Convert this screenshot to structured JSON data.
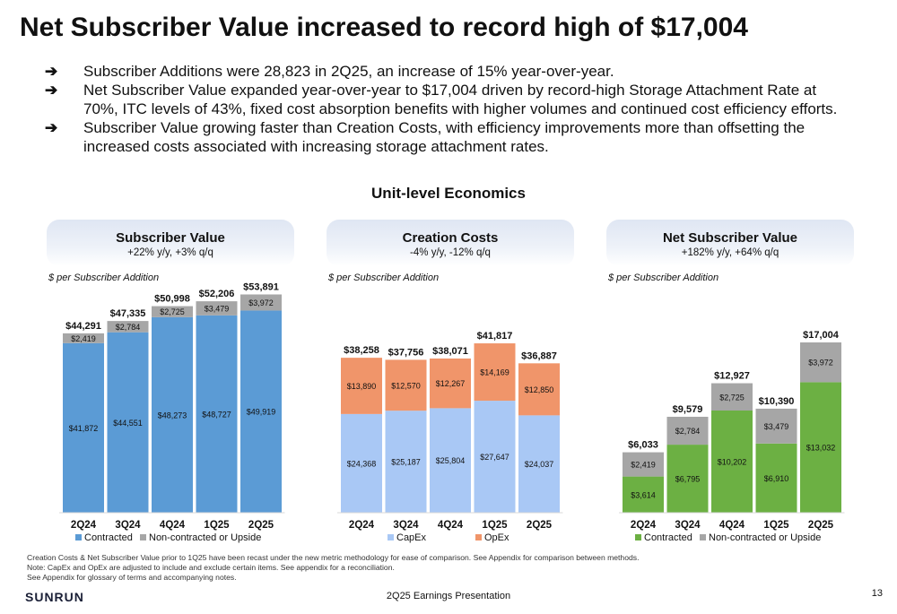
{
  "title": "Net Subscriber Value increased to record high of $17,004",
  "bullet_arrow": "➔",
  "bullets": [
    "Subscriber Additions were 28,823 in 2Q25, an increase of 15% year-over-year.",
    "Net Subscriber Value expanded year-over-year to $17,004 driven by record-high Storage Attachment Rate at 70%, ITC levels of 43%, fixed cost absorption benefits with higher volumes and continued cost efficiency efforts.",
    "Subscriber Value growing faster than Creation Costs, with efficiency improvements more than offsetting the increased costs associated with increasing storage attachment rates."
  ],
  "section_title": "Unit-level Economics",
  "colors": {
    "contracted_blue": "#5b9bd5",
    "noncontracted_gray": "#a6a6a6",
    "capex": "#a9c8f5",
    "opex": "#f0956a",
    "contracted_green": "#6cb043"
  },
  "panels": [
    {
      "title": "Subscriber Value",
      "subtitle": "+22% y/y, +3% q/q",
      "unit": "$ per Subscriber Addition"
    },
    {
      "title": "Creation Costs",
      "subtitle": "-4% y/y, -12% q/q",
      "unit": "$ per Subscriber Addition"
    },
    {
      "title": "Net Subscriber Value",
      "subtitle": "+182% y/y, +64% q/q",
      "unit": "$ per Subscriber Addition"
    }
  ],
  "chart_data": [
    {
      "type": "bar",
      "stacked": true,
      "categories": [
        "2Q24",
        "3Q24",
        "4Q24",
        "1Q25",
        "2Q25"
      ],
      "series": [
        {
          "name": "Contracted",
          "values": [
            41872,
            44551,
            48273,
            48727,
            49919
          ],
          "labels": [
            "$41,872",
            "$44,551",
            "$48,273",
            "$48,727",
            "$49,919"
          ],
          "color": "#5b9bd5"
        },
        {
          "name": "Non-contracted or Upside",
          "values": [
            2419,
            2784,
            2725,
            3479,
            3972
          ],
          "labels": [
            "$2,419",
            "$2,784",
            "$2,725",
            "$3,479",
            "$3,972"
          ],
          "color": "#a6a6a6"
        }
      ],
      "totals": [
        44291,
        47335,
        50998,
        52206,
        53891
      ],
      "total_labels": [
        "$44,291",
        "$47,335",
        "$50,998",
        "$52,206",
        "$53,891"
      ],
      "legend": [
        "Contracted",
        "Non-contracted or Upside"
      ],
      "legend_placement": "bottom",
      "ylim": [
        0,
        54000
      ]
    },
    {
      "type": "bar",
      "stacked": true,
      "categories": [
        "2Q24",
        "3Q24",
        "4Q24",
        "1Q25",
        "2Q25"
      ],
      "series": [
        {
          "name": "CapEx",
          "values": [
            24368,
            25187,
            25804,
            27647,
            24037
          ],
          "labels": [
            "$24,368",
            "$25,187",
            "$25,804",
            "$27,647",
            "$24,037"
          ],
          "color": "#a9c8f5"
        },
        {
          "name": "OpEx",
          "values": [
            13890,
            12570,
            12267,
            14169,
            12850
          ],
          "labels": [
            "$13,890",
            "$12,570",
            "$12,267",
            "$14,169",
            "$12,850"
          ],
          "color": "#f0956a"
        }
      ],
      "totals": [
        38258,
        37756,
        38071,
        41817,
        36887
      ],
      "total_labels": [
        "$38,258",
        "$37,756",
        "$38,071",
        "$41,817",
        "$36,887"
      ],
      "legend": [
        "CapEx",
        "OpEx"
      ],
      "legend_placement": "bottom",
      "ylim": [
        0,
        54000
      ]
    },
    {
      "type": "bar",
      "stacked": true,
      "categories": [
        "2Q24",
        "3Q24",
        "4Q24",
        "1Q25",
        "2Q25"
      ],
      "series": [
        {
          "name": "Contracted",
          "values": [
            3614,
            6795,
            10202,
            6910,
            13032
          ],
          "labels": [
            "$3,614",
            "$6,795",
            "$10,202",
            "$6,910",
            "$13,032"
          ],
          "color": "#6cb043"
        },
        {
          "name": "Non-contracted or Upside",
          "values": [
            2419,
            2784,
            2725,
            3479,
            3972
          ],
          "labels": [
            "$2,419",
            "$2,784",
            "$2,725",
            "$3,479",
            "$3,972"
          ],
          "color": "#a6a6a6"
        }
      ],
      "totals": [
        6033,
        9579,
        12927,
        10390,
        17004
      ],
      "total_labels": [
        "$6,033",
        "$9,579",
        "$12,927",
        "$10,390",
        "$17,004"
      ],
      "legend": [
        "Contracted",
        "Non-contracted or Upside"
      ],
      "legend_placement": "bottom",
      "ylim": [
        0,
        17004
      ]
    }
  ],
  "footnotes": [
    "Creation Costs & Net Subscriber Value prior to 1Q25 have been recast under the new metric methodology for ease of comparison.  See Appendix for comparison between methods.",
    "Note:  CapEx and OpEx are adjusted to include and exclude certain items.  See appendix for a reconciliation.",
    "See Appendix for glossary of terms and accompanying notes."
  ],
  "logo": "SUNRUN",
  "footer": "2Q25 Earnings Presentation",
  "page_number": "13"
}
